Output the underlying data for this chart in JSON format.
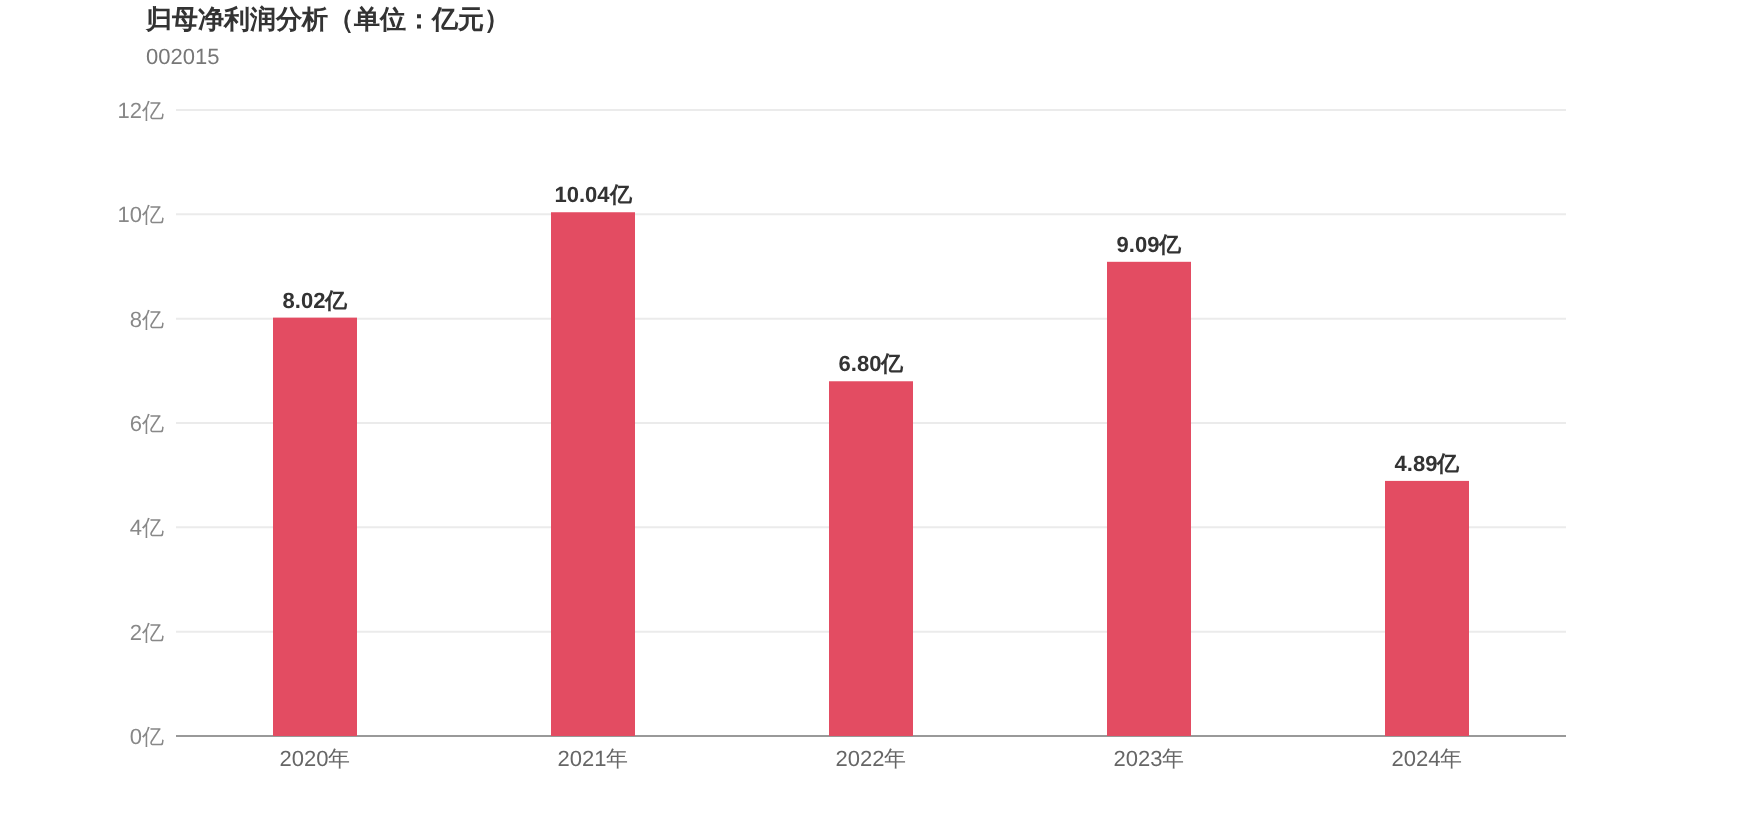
{
  "chart_data": {
    "type": "bar",
    "title": "归母净利润分析（单位：亿元）",
    "subtitle": "002015",
    "categories": [
      "2020年",
      "2021年",
      "2022年",
      "2023年",
      "2024年"
    ],
    "values": [
      8.02,
      10.04,
      6.8,
      9.09,
      4.89
    ],
    "value_labels": [
      "8.02亿",
      "10.04亿",
      "6.80亿",
      "9.09亿",
      "4.89亿"
    ],
    "color": "#e34c62",
    "ylim": [
      0,
      12
    ],
    "yticks": [
      {
        "value": 0,
        "label": "0亿"
      },
      {
        "value": 2,
        "label": "2亿"
      },
      {
        "value": 4,
        "label": "4亿"
      },
      {
        "value": 6,
        "label": "6亿"
      },
      {
        "value": 8,
        "label": "8亿"
      },
      {
        "value": 10,
        "label": "10亿"
      },
      {
        "value": 12,
        "label": "12亿"
      }
    ],
    "grid": "y"
  }
}
